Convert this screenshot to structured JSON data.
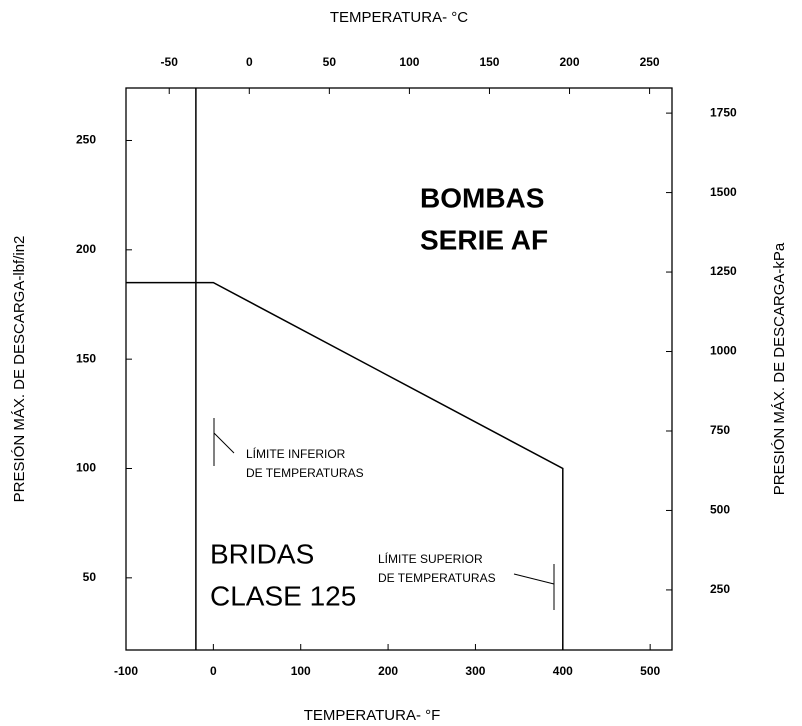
{
  "chart_data": {
    "type": "line",
    "x_label": "TEMPERATURA- °F",
    "x2_label": "TEMPERATURA- °C",
    "y_label": "PRESIÓN MÁX. DE DESCARGA-lbf/in2",
    "y2_label": "PRESIÓN MÁX. DE DESCARGA-kPa",
    "xlim": [
      -100,
      525
    ],
    "xticks": [
      -100,
      0,
      100,
      200,
      300,
      400,
      500
    ],
    "x2lim": [
      -77,
      264
    ],
    "x2ticks": [
      -50,
      0,
      50,
      100,
      150,
      200,
      250
    ],
    "ylim": [
      17,
      274
    ],
    "yticks": [
      50,
      100,
      150,
      200,
      250
    ],
    "y2lim": [
      61,
      1829
    ],
    "y2ticks": [
      250,
      500,
      750,
      1000,
      1250,
      1500,
      1750
    ],
    "series": [
      {
        "name": null,
        "color": "#000000",
        "x": [
          -100,
          0,
          400,
          400
        ],
        "values": [
          185,
          185,
          100,
          17
        ]
      }
    ],
    "vlines": [
      -20
    ],
    "annotations": [
      {
        "lines": [
          "BOMBAS",
          "SERIE AF"
        ]
      },
      {
        "lines": [
          "BRIDAS",
          "CLASE 125"
        ]
      },
      {
        "lines": [
          "LÍMITE INFERIOR",
          "DE TEMPERATURAS"
        ]
      },
      {
        "lines": [
          "LÍMITE SUPERIOR",
          "DE TEMPERATURAS"
        ]
      }
    ]
  }
}
